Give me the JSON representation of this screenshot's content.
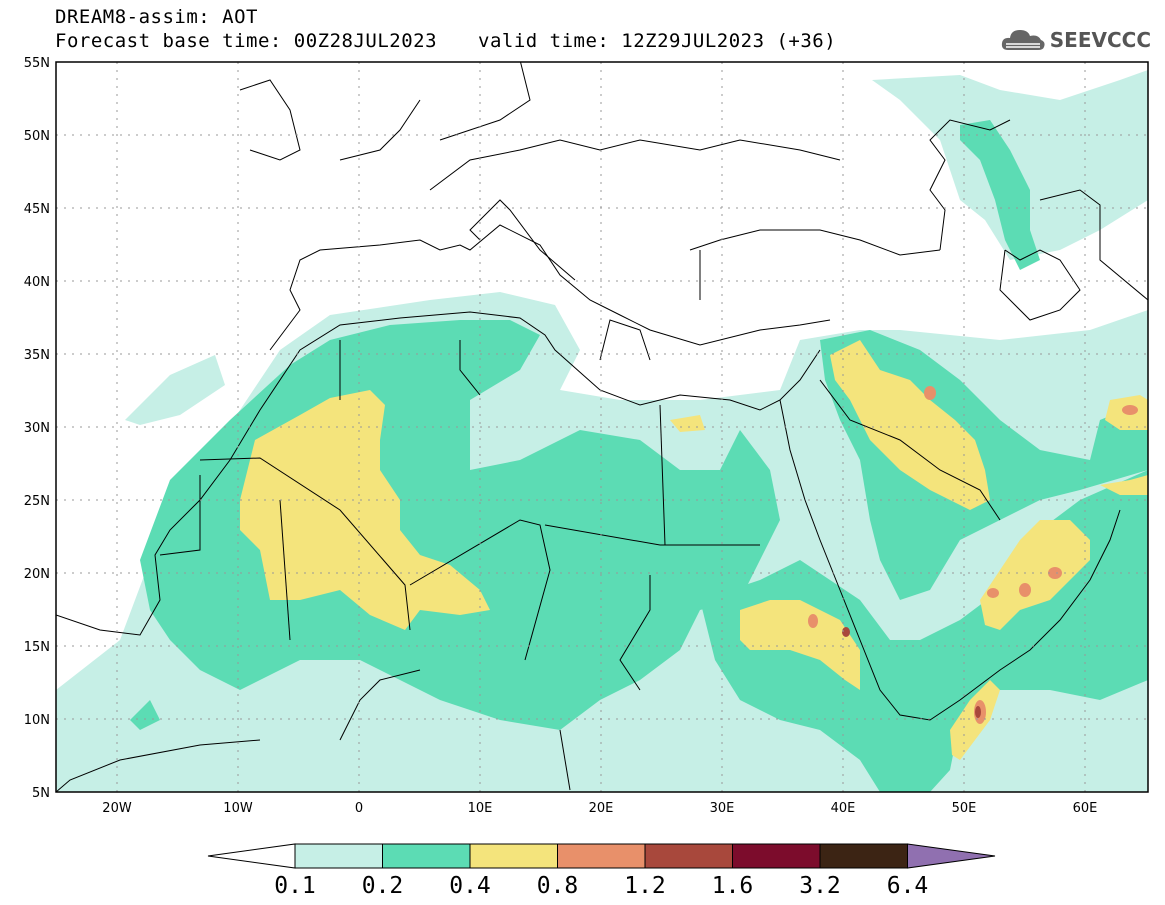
{
  "header": {
    "title": "DREAM8-assim: AOT",
    "base_time": "Forecast base time: 00Z28JUL2023",
    "valid_time": "valid time: 12Z29JUL2023 (+36)"
  },
  "logo": {
    "text": "SEEVCCC",
    "icon": "cloud-icon"
  },
  "map": {
    "lon_labels": [
      "20W",
      "10W",
      "0",
      "10E",
      "20E",
      "30E",
      "40E",
      "50E",
      "60E"
    ],
    "lat_labels": [
      "55N",
      "50N",
      "45N",
      "40N",
      "35N",
      "30N",
      "25N",
      "20N",
      "15N",
      "10N",
      "5N"
    ],
    "lon_range": [
      -25,
      65
    ],
    "lat_range": [
      5,
      55
    ]
  },
  "colorbar": {
    "levels": [
      "0.1",
      "0.2",
      "0.4",
      "0.8",
      "1.2",
      "1.6",
      "3.2",
      "6.4"
    ],
    "colors": [
      "#c6efe6",
      "#5cdcb4",
      "#f4e47c",
      "#e8906a",
      "#a8483c",
      "#7c0c2c",
      "#3c2414",
      "#9070b0"
    ]
  }
}
